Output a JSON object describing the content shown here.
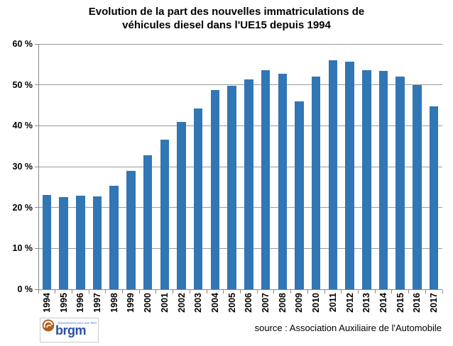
{
  "chart_data": {
    "type": "bar",
    "title": "Evolution de la part des nouvelles immatriculations de véhicules diesel dans l'UE15 depuis 1994",
    "title_lines": [
      "Evolution de la part des nouvelles immatriculations de",
      "véhicules diesel dans l'UE15 depuis 1994"
    ],
    "categories": [
      "1994",
      "1995",
      "1996",
      "1997",
      "1998",
      "1999",
      "2000",
      "2001",
      "2002",
      "2003",
      "2004",
      "2005",
      "2006",
      "2007",
      "2008",
      "2009",
      "2010",
      "2011",
      "2012",
      "2013",
      "2014",
      "2015",
      "2016",
      "2017"
    ],
    "values": [
      23.0,
      22.5,
      22.9,
      22.7,
      25.3,
      29.0,
      32.7,
      36.6,
      40.9,
      44.2,
      48.8,
      49.8,
      51.3,
      53.5,
      52.8,
      46.0,
      52.0,
      56.0,
      55.7,
      53.6,
      53.4,
      52.0,
      50.0,
      44.7
    ],
    "xlabel": "",
    "ylabel": "",
    "ylim": [
      0,
      60
    ],
    "ytick_step": 10,
    "ytick_labels": [
      "0 %",
      "10 %",
      "20 %",
      "30 %",
      "40 %",
      "50 %",
      "60 %"
    ],
    "grid": true,
    "legend": false,
    "unit": "%"
  },
  "footer": {
    "source_text": "source : Association Auxiliaire de l'Automobile",
    "logo": {
      "brand": "brgm",
      "slogan": "Géosciences pour une Terre durable"
    }
  },
  "colors": {
    "background": "#ffffff",
    "text": "#000000",
    "bar": "#3176b5",
    "gridline": "#9a9a9a",
    "axis": "#8a8a8a",
    "brgm_blue": "#28519f",
    "brgm_orange": "#b05f1e",
    "brgm_slogan_blue": "#4a76c9"
  }
}
